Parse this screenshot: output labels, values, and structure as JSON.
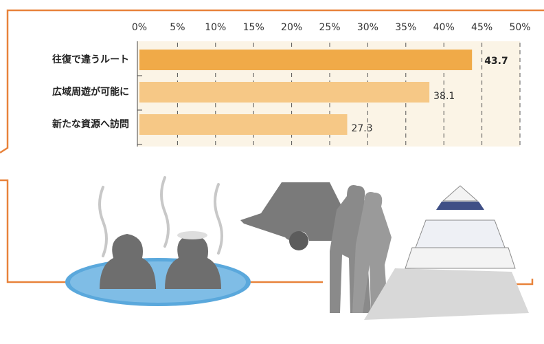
{
  "chart_data": {
    "type": "bar",
    "orientation": "horizontal",
    "categories": [
      "往復で違うルート",
      "広域周遊が可能に",
      "新たな資源へ訪問"
    ],
    "values": [
      43.7,
      38.1,
      27.3
    ],
    "colors": [
      "#f0aa48",
      "#f6c886",
      "#f6c886"
    ],
    "xlim": [
      0,
      50
    ],
    "xticks": [
      {
        "value": 0,
        "label": "0%"
      },
      {
        "value": 5,
        "label": "5%"
      },
      {
        "value": 10,
        "label": "10%"
      },
      {
        "value": 15,
        "label": "15%"
      },
      {
        "value": 20,
        "label": "20%"
      },
      {
        "value": 25,
        "label": "25%"
      },
      {
        "value": 30,
        "label": "30%"
      },
      {
        "value": 35,
        "label": "35%"
      },
      {
        "value": 40,
        "label": "40%"
      },
      {
        "value": 45,
        "label": "45%"
      },
      {
        "value": 50,
        "label": "50%"
      }
    ],
    "grid": true
  }
}
